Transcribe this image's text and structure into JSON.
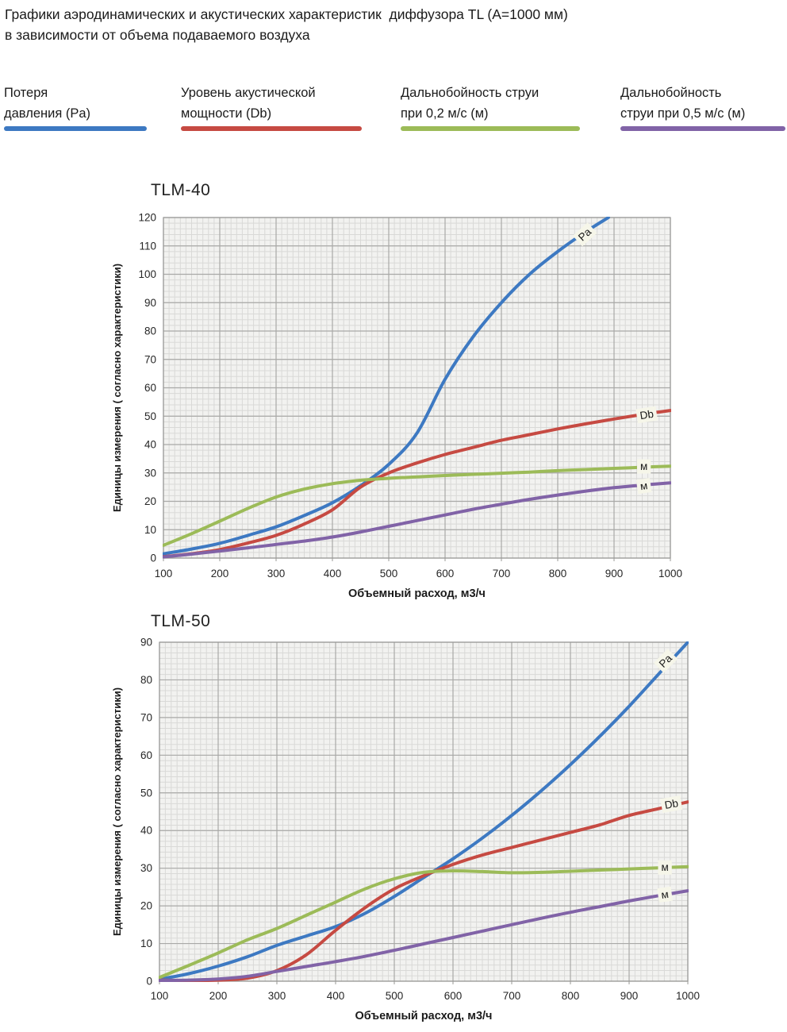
{
  "page": {
    "title": "Графики аэродинамических и акустических характеристик  диффузора TL (А=1000 мм)\nв зависимости от объема подаваемого воздуха"
  },
  "legend": {
    "items": [
      {
        "label": "Потеря\nдавления (Pa)",
        "color": "#3d79c2"
      },
      {
        "label": "Уровень акустической\nмощности (Db)",
        "color": "#c64a42"
      },
      {
        "label": "Дальнобойность струи\nпри 0,2 м/с (м)",
        "color": "#9cbb58"
      },
      {
        "label": "Дальнобойность\nструи при 0,5 м/с (м)",
        "color": "#8163a7"
      }
    ]
  },
  "chart_data": [
    {
      "type": "line",
      "title": "TLM-40",
      "xlabel": "Объемный расход, м3/ч",
      "ylabel": "Единицы измерения ( согласно характеристики)",
      "xlim": [
        100,
        1000
      ],
      "ylim": [
        0,
        120
      ],
      "xticks": [
        100,
        200,
        300,
        400,
        500,
        600,
        700,
        800,
        900,
        1000
      ],
      "yticks": [
        0,
        10,
        20,
        30,
        40,
        50,
        60,
        70,
        80,
        90,
        100,
        110,
        120
      ],
      "grid": "major+minor",
      "legend_position": "top-of-page",
      "series": [
        {
          "name": "Потеря давления (Pa)",
          "short": "pa",
          "color": "#3d79c2",
          "points": [
            [
              100,
              1.5
            ],
            [
              150,
              3.2
            ],
            [
              200,
              5.2
            ],
            [
              250,
              8
            ],
            [
              300,
              11
            ],
            [
              350,
              15
            ],
            [
              400,
              19.5
            ],
            [
              450,
              25.5
            ],
            [
              500,
              33
            ],
            [
              550,
              44
            ],
            [
              600,
              63
            ],
            [
              650,
              78
            ],
            [
              700,
              90
            ],
            [
              750,
              100
            ],
            [
              800,
              108
            ],
            [
              850,
              115
            ],
            [
              890,
              120
            ]
          ]
        },
        {
          "name": "Уровень акустической мощности (Db)",
          "short": "db",
          "color": "#c64a42",
          "points": [
            [
              100,
              0.5
            ],
            [
              150,
              1.5
            ],
            [
              200,
              3
            ],
            [
              250,
              5.3
            ],
            [
              300,
              8
            ],
            [
              350,
              12
            ],
            [
              400,
              17
            ],
            [
              450,
              25
            ],
            [
              500,
              30
            ],
            [
              550,
              33.5
            ],
            [
              600,
              36.5
            ],
            [
              650,
              39
            ],
            [
              700,
              41.5
            ],
            [
              750,
              43.5
            ],
            [
              800,
              45.5
            ],
            [
              850,
              47.3
            ],
            [
              900,
              49
            ],
            [
              950,
              50.6
            ],
            [
              1000,
              52
            ]
          ]
        },
        {
          "name": "Дальнобойность струи при 0,2 м/с (м)",
          "short": "m02",
          "color": "#9cbb58",
          "points": [
            [
              100,
              4.5
            ],
            [
              150,
              8.6
            ],
            [
              200,
              13
            ],
            [
              250,
              17.5
            ],
            [
              300,
              21.5
            ],
            [
              350,
              24.3
            ],
            [
              400,
              26.2
            ],
            [
              450,
              27.4
            ],
            [
              500,
              28.1
            ],
            [
              550,
              28.6
            ],
            [
              600,
              29.1
            ],
            [
              650,
              29.5
            ],
            [
              700,
              29.9
            ],
            [
              750,
              30.3
            ],
            [
              800,
              30.8
            ],
            [
              850,
              31.2
            ],
            [
              900,
              31.6
            ],
            [
              950,
              32
            ],
            [
              1000,
              32.4
            ]
          ]
        },
        {
          "name": "Дальнобойность струи при 0,5 м/с (м)",
          "short": "m05",
          "color": "#8163a7",
          "points": [
            [
              100,
              0.4
            ],
            [
              150,
              1.4
            ],
            [
              200,
              2.5
            ],
            [
              250,
              3.6
            ],
            [
              300,
              4.8
            ],
            [
              350,
              6
            ],
            [
              400,
              7.4
            ],
            [
              450,
              9.2
            ],
            [
              500,
              11.2
            ],
            [
              550,
              13.2
            ],
            [
              600,
              15.2
            ],
            [
              650,
              17.2
            ],
            [
              700,
              19
            ],
            [
              750,
              20.7
            ],
            [
              800,
              22.2
            ],
            [
              850,
              23.6
            ],
            [
              900,
              24.8
            ],
            [
              950,
              25.7
            ],
            [
              1000,
              26.5
            ]
          ]
        }
      ],
      "line_labels": [
        {
          "text": "Pa",
          "x": 848,
          "y": 114,
          "rot": -42
        },
        {
          "text": "Db",
          "x": 958,
          "y": 50.5,
          "rot": -9
        },
        {
          "text": "м",
          "x": 953,
          "y": 32.3,
          "rot": 0
        },
        {
          "text": "м",
          "x": 953,
          "y": 25.4,
          "rot": -8
        }
      ]
    },
    {
      "type": "line",
      "title": "TLM-50",
      "xlabel": "Объемный расход, м3/ч",
      "ylabel": "Единицы измерения ( согласно характеристики)",
      "xlim": [
        100,
        1000
      ],
      "ylim": [
        0,
        90
      ],
      "xticks": [
        100,
        200,
        300,
        400,
        500,
        600,
        700,
        800,
        900,
        1000
      ],
      "yticks": [
        0,
        10,
        20,
        30,
        40,
        50,
        60,
        70,
        80,
        90
      ],
      "grid": "major+minor",
      "legend_position": "top-of-page",
      "series": [
        {
          "name": "Потеря давления (Pa)",
          "short": "pa",
          "color": "#3d79c2",
          "points": [
            [
              100,
              0.5
            ],
            [
              150,
              2
            ],
            [
              200,
              4
            ],
            [
              250,
              6.5
            ],
            [
              300,
              9.5
            ],
            [
              350,
              12
            ],
            [
              400,
              14.5
            ],
            [
              450,
              18
            ],
            [
              500,
              22.5
            ],
            [
              550,
              27.5
            ],
            [
              600,
              32.5
            ],
            [
              650,
              38
            ],
            [
              700,
              44
            ],
            [
              750,
              50.5
            ],
            [
              800,
              57.5
            ],
            [
              850,
              65
            ],
            [
              900,
              73
            ],
            [
              950,
              81.5
            ],
            [
              1000,
              90
            ]
          ]
        },
        {
          "name": "Уровень акустической мощности (Db)",
          "short": "db",
          "color": "#c64a42",
          "points": [
            [
              100,
              0.3
            ],
            [
              150,
              0.2
            ],
            [
              200,
              0.3
            ],
            [
              250,
              0.8
            ],
            [
              300,
              2.8
            ],
            [
              350,
              7
            ],
            [
              400,
              13.5
            ],
            [
              450,
              19.5
            ],
            [
              500,
              24.5
            ],
            [
              550,
              28
            ],
            [
              600,
              31
            ],
            [
              650,
              33.5
            ],
            [
              700,
              35.5
            ],
            [
              750,
              37.5
            ],
            [
              800,
              39.5
            ],
            [
              850,
              41.5
            ],
            [
              900,
              44
            ],
            [
              950,
              45.8
            ],
            [
              1000,
              47.6
            ]
          ]
        },
        {
          "name": "Дальнобойность струи при 0,2 м/с (м)",
          "short": "m02",
          "color": "#9cbb58",
          "points": [
            [
              100,
              1
            ],
            [
              150,
              4.2
            ],
            [
              200,
              7.5
            ],
            [
              250,
              11
            ],
            [
              300,
              14
            ],
            [
              350,
              17.5
            ],
            [
              400,
              21
            ],
            [
              450,
              24.5
            ],
            [
              500,
              27.2
            ],
            [
              550,
              28.9
            ],
            [
              600,
              29.3
            ],
            [
              650,
              29.1
            ],
            [
              700,
              28.8
            ],
            [
              750,
              28.9
            ],
            [
              800,
              29.2
            ],
            [
              850,
              29.5
            ],
            [
              900,
              29.8
            ],
            [
              950,
              30.1
            ],
            [
              1000,
              30.4
            ]
          ]
        },
        {
          "name": "Дальнобойность струи при 0,5 м/с (м)",
          "short": "m05",
          "color": "#8163a7",
          "points": [
            [
              100,
              0.2
            ],
            [
              150,
              0.3
            ],
            [
              200,
              0.6
            ],
            [
              250,
              1.3
            ],
            [
              300,
              2.6
            ],
            [
              350,
              3.9
            ],
            [
              400,
              5.2
            ],
            [
              450,
              6.6
            ],
            [
              500,
              8.2
            ],
            [
              550,
              9.9
            ],
            [
              600,
              11.6
            ],
            [
              650,
              13.3
            ],
            [
              700,
              15
            ],
            [
              750,
              16.7
            ],
            [
              800,
              18.3
            ],
            [
              850,
              19.8
            ],
            [
              900,
              21.3
            ],
            [
              950,
              22.7
            ],
            [
              1000,
              24
            ]
          ]
        }
      ],
      "line_labels": [
        {
          "text": "Pa",
          "x": 962,
          "y": 85,
          "rot": -45
        },
        {
          "text": "Db",
          "x": 972,
          "y": 47,
          "rot": -10
        },
        {
          "text": "м",
          "x": 961,
          "y": 30.2,
          "rot": 0
        },
        {
          "text": "м",
          "x": 961,
          "y": 23,
          "rot": -8
        }
      ]
    }
  ],
  "style_colors": {
    "plot_background": "#f2f2f0",
    "minor_grid": "#d9d9d7",
    "major_grid": "#a9a9a7",
    "plot_border": "#9a9a98",
    "tick_text": "#262626",
    "line_label_background": "#f6f6e9"
  }
}
